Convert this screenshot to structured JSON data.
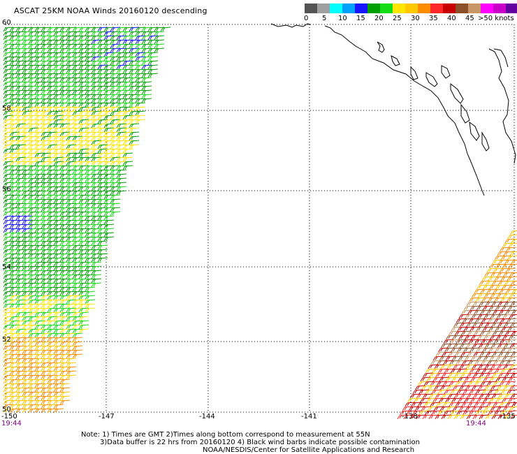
{
  "header": {
    "title": "ASCAT 25KM NOAA Winds 20160120 descending"
  },
  "legend": {
    "colors": [
      "#545454",
      "#a0a0a0",
      "#00ffff",
      "#00a0ff",
      "#1414ff",
      "#00a000",
      "#14dc14",
      "#ffe600",
      "#ffc800",
      "#ff8c00",
      "#ff2828",
      "#c80000",
      "#8c5028",
      "#c89664",
      "#ff00ff",
      "#c800c8",
      "#6400a0"
    ],
    "ticks": [
      "0",
      "5",
      "10",
      "15",
      "20",
      "25",
      "30",
      "35",
      "40",
      "45",
      ">50 knots"
    ]
  },
  "axes": {
    "lat_labels": [
      "60",
      "58",
      "56",
      "54",
      "52",
      "50"
    ],
    "lon_labels": [
      "-150",
      "-147",
      "-144",
      "-141",
      "-138",
      "-135"
    ],
    "lat_range": [
      50,
      60
    ],
    "lon_range": [
      -150,
      -135
    ]
  },
  "times": {
    "left": "19:44",
    "right": "19:44"
  },
  "swaths": {
    "west_colors": [
      "#00a000",
      "#14dc14",
      "#ffe600",
      "#ffc800",
      "#1414ff"
    ],
    "east_colors": [
      "#8c5028",
      "#c80000",
      "#ff8c00",
      "#ffc800",
      "#ff2828",
      "#c89664"
    ]
  },
  "notes": [
    "Note: 1) Times are GMT 2)Times along bottom correspond to measurement at 55N",
    "3)Data buffer is 22 hrs from 20160120 4) Black wind barbs indicate possible contamination",
    "NOAA/NESDIS/Center for Satellite Applications and Research"
  ]
}
